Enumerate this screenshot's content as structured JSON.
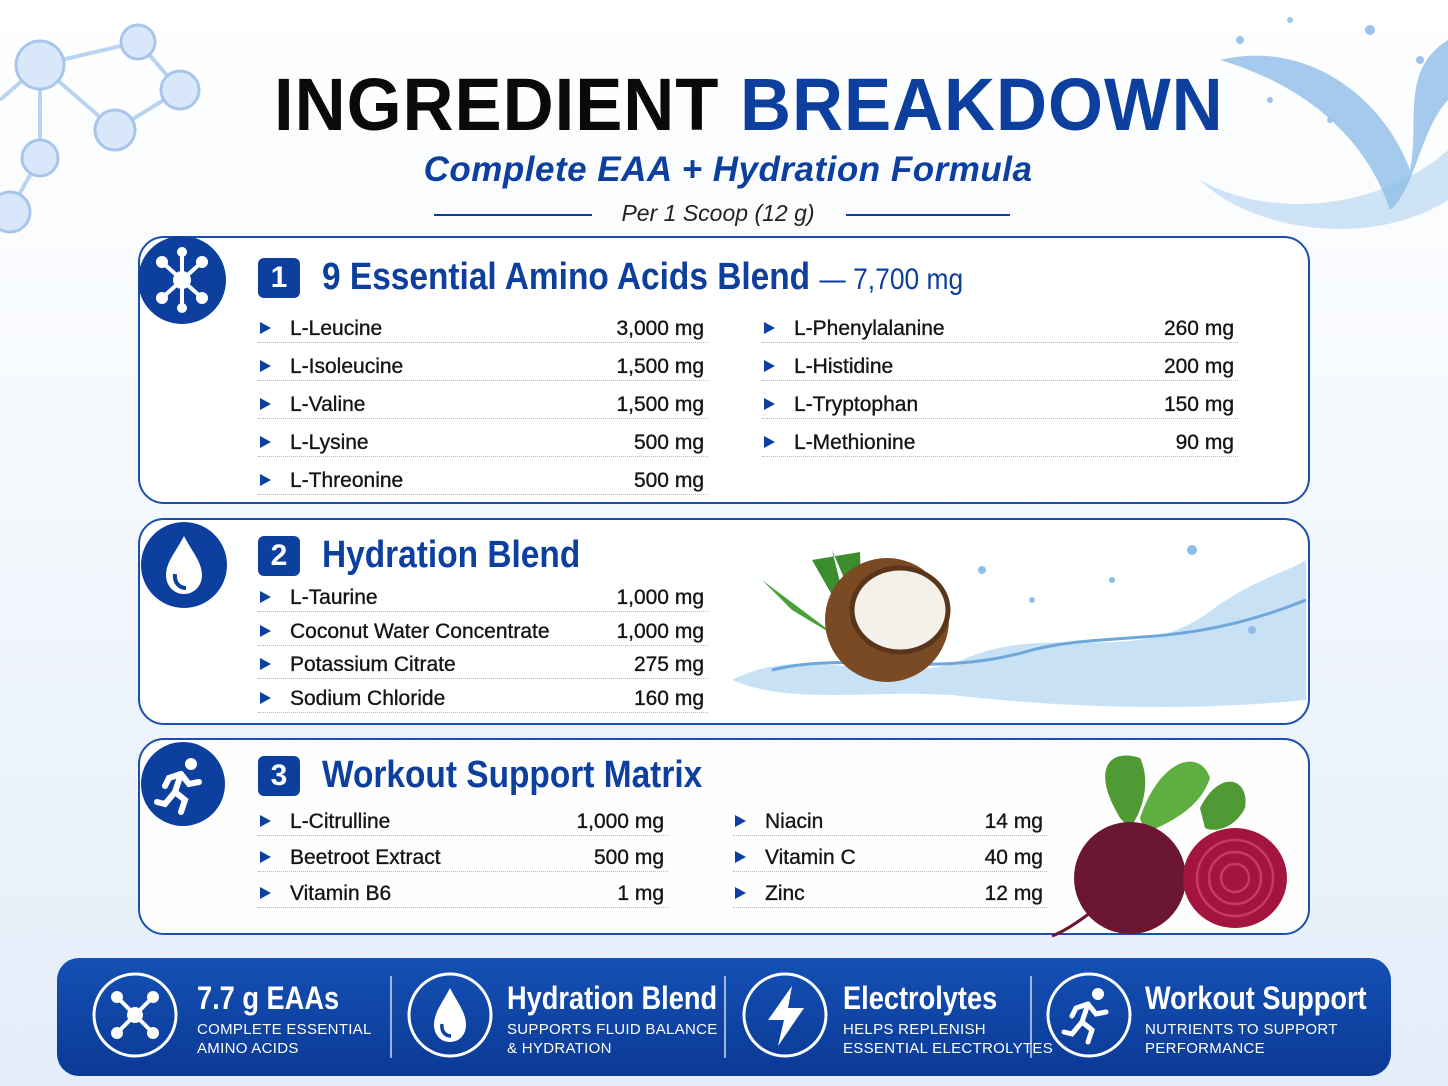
{
  "header": {
    "title_dark": "INGREDIENT",
    "title_blue": "BREAKDOWN",
    "subtitle": "Complete EAA + Hydration Formula",
    "serving": "Per 1 Scoop (12 g)"
  },
  "sections": [
    {
      "number": "1",
      "title": "9 Essential Amino Acids Blend",
      "total": "— 7,700 mg",
      "columns": [
        [
          {
            "name": "L-Leucine",
            "amount": "3,000 mg"
          },
          {
            "name": "L-Isoleucine",
            "amount": "1,500 mg"
          },
          {
            "name": "L-Valine",
            "amount": "1,500 mg"
          },
          {
            "name": "L-Lysine",
            "amount": "500 mg"
          },
          {
            "name": "L-Threonine",
            "amount": "500 mg"
          }
        ],
        [
          {
            "name": "L-Phenylalanine",
            "amount": "260 mg"
          },
          {
            "name": "L-Histidine",
            "amount": "200 mg"
          },
          {
            "name": "L-Tryptophan",
            "amount": "150 mg"
          },
          {
            "name": "L-Methionine",
            "amount": "90 mg"
          }
        ]
      ]
    },
    {
      "number": "2",
      "title": "Hydration Blend",
      "columns": [
        [
          {
            "name": "L-Taurine",
            "amount": "1,000 mg"
          },
          {
            "name": "Coconut Water Concentrate",
            "amount": "1,000 mg"
          },
          {
            "name": "Potassium Citrate",
            "amount": "275 mg"
          },
          {
            "name": "Sodium Chloride",
            "amount": "160 mg"
          }
        ]
      ]
    },
    {
      "number": "3",
      "title": "Workout Support Matrix",
      "columns": [
        [
          {
            "name": "L-Citrulline",
            "amount": "1,000 mg"
          },
          {
            "name": "Beetroot Extract",
            "amount": "500 mg"
          },
          {
            "name": "Vitamin B6",
            "amount": "1 mg"
          }
        ],
        [
          {
            "name": "Niacin",
            "amount": "14 mg"
          },
          {
            "name": "Vitamin C",
            "amount": "40 mg"
          },
          {
            "name": "Zinc",
            "amount": "12 mg"
          }
        ]
      ]
    }
  ],
  "summary": [
    {
      "headline": "7.7 g EAAs",
      "lines": [
        "COMPLETE ESSENTIAL",
        "AMINO ACIDS"
      ]
    },
    {
      "headline": "Hydration Blend",
      "lines": [
        "SUPPORTS FLUID BALANCE",
        "& HYDRATION"
      ]
    },
    {
      "headline": "Electrolytes",
      "lines": [
        "HELPS REPLENISH",
        "ESSENTIAL ELECTROLYTES"
      ]
    },
    {
      "headline": "Workout Support",
      "lines": [
        "NUTRIENTS TO SUPPORT",
        "PERFORMANCE"
      ]
    }
  ]
}
